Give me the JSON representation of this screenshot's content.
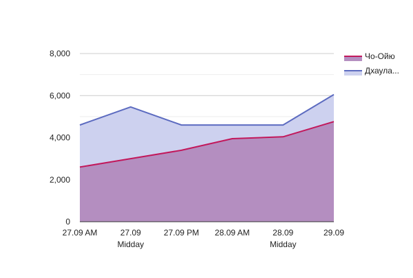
{
  "chart_data": {
    "type": "area",
    "categories": [
      [
        "27.09 AM",
        ""
      ],
      [
        "27.09",
        "Midday"
      ],
      [
        "27.09 PM",
        ""
      ],
      [
        "28.09 AM",
        ""
      ],
      [
        "28.09",
        "Midday"
      ],
      [
        "29.09",
        ""
      ]
    ],
    "series": [
      {
        "name": "Чо-Ойю",
        "values": [
          2600,
          3000,
          3400,
          3950,
          4040,
          4760
        ],
        "line_color": "#c2185b",
        "fill_color": "#b48ec0"
      },
      {
        "name": "Дхаула...",
        "values": [
          4600,
          5460,
          4600,
          4600,
          4600,
          6050
        ],
        "line_color": "#5c6bc0",
        "fill_color": "#cdd1ef"
      }
    ],
    "yticks": [
      "0",
      "2,000",
      "4,000",
      "6,000",
      "8,000"
    ],
    "ylim": [
      0,
      8000
    ],
    "grid": true,
    "legend_position": "right"
  }
}
